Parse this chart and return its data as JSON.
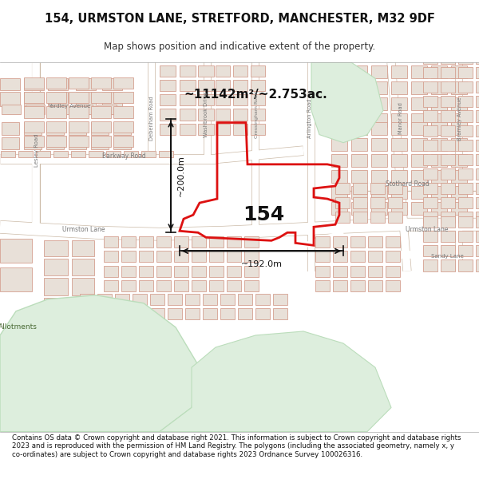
{
  "title_line1": "154, URMSTON LANE, STRETFORD, MANCHESTER, M32 9DF",
  "title_line2": "Map shows position and indicative extent of the property.",
  "label_154": "154",
  "area_text": "~11142m²/~2.753ac.",
  "dim_v": "~200.0m",
  "dim_h": "~192.0m",
  "footer_text": "Contains OS data © Crown copyright and database right 2021. This information is subject to Crown copyright and database rights 2023 and is reproduced with the permission of HM Land Registry. The polygons (including the associated geometry, namely x, y co-ordinates) are subject to Crown copyright and database rights 2023 Ordnance Survey 100026316.",
  "map_bg": "#f5f3ee",
  "road_color": "#ffffff",
  "road_edge": "#ccbba8",
  "bld_fill": "#e8e0d8",
  "bld_edge": "#d4a090",
  "prop_color": "#dd1111",
  "green_fill": "#ddeedd",
  "green_edge": "#bbddbb",
  "text_road": "#777777",
  "header_bg": "#ffffff",
  "footer_bg": "#ffffff"
}
